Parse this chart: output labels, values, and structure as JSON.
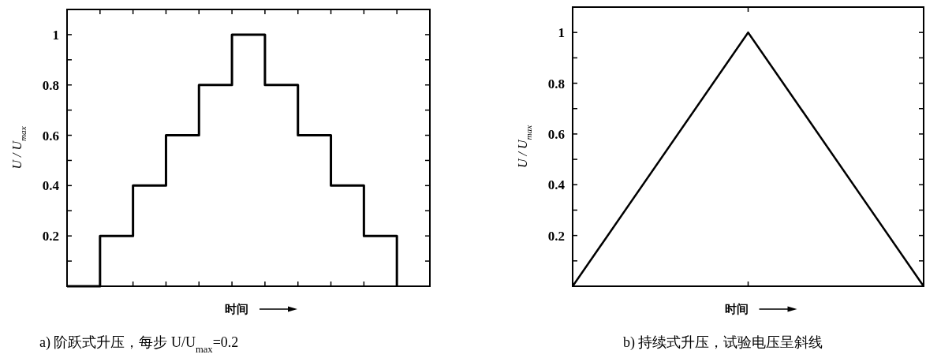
{
  "chart_data": [
    {
      "type": "step",
      "title": "a)  阶跃式升压，每步 U/U$_{max}$=0.2",
      "xlabel": "时间",
      "ylabel": "U / U$_{max}$",
      "categories": [
        null,
        null,
        null,
        null,
        null,
        null,
        null,
        null,
        null,
        null,
        null
      ],
      "values": [
        0,
        0.2,
        0.4,
        0.6,
        0.8,
        1,
        0.8,
        0.6,
        0.4,
        0.2,
        0
      ],
      "color": "#000000",
      "ylim": [
        0,
        1.1
      ],
      "yticks": [
        {
          "value": 0.1,
          "label": null
        },
        0.2,
        {
          "value": 0.3,
          "label": null
        },
        0.4,
        {
          "value": 0.5,
          "label": null
        },
        0.6,
        {
          "value": 0.7,
          "label": null
        },
        0.8,
        {
          "value": 0.9,
          "label": null
        },
        1
      ],
      "tick_labels": "y"
    },
    {
      "type": "line",
      "title": "b)  持续式升压，试验电压呈斜线",
      "xlabel": "时间",
      "ylabel": "U / U$_{max}$",
      "categories": [
        null,
        null,
        null
      ],
      "values": [
        0,
        1,
        0
      ],
      "color": "#000000",
      "ylim": [
        0,
        1.1
      ],
      "yticks": [
        {
          "value": 0.1,
          "label": null
        },
        0.2,
        {
          "value": 0.3,
          "label": null
        },
        0.4,
        {
          "value": 0.5,
          "label": null
        },
        0.6,
        {
          "value": 0.7,
          "label": null
        },
        0.8,
        {
          "value": 0.9,
          "label": null
        },
        1
      ],
      "tick_labels": "y"
    }
  ]
}
